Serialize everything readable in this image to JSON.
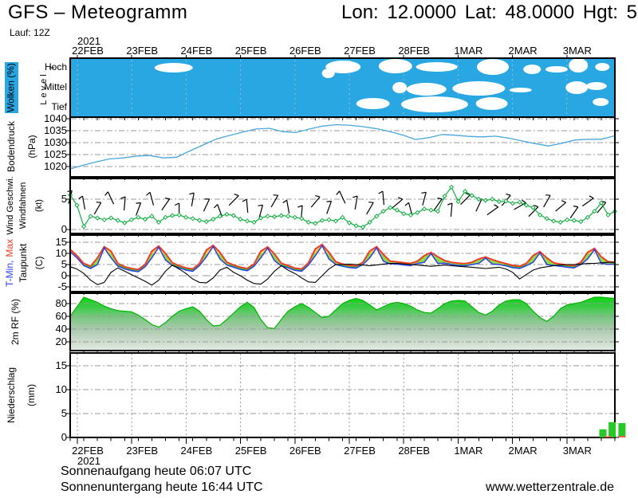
{
  "header": {
    "title": "GFS – Meteogramm",
    "coords": "Lon: 12.0000 Lat: 48.0000 Hgt: 5",
    "run": "Lauf: 12Z"
  },
  "x_axis": {
    "year": "2021",
    "days": [
      "22FEB",
      "23FEB",
      "24FEB",
      "25FEB",
      "26FEB",
      "27FEB",
      "28FEB",
      "1MAR",
      "2MAR",
      "3MAR"
    ]
  },
  "footer": {
    "sunrise": "Sonnenaufgang heute 06:07 UTC",
    "sunset": "Sonnenuntergang heute 16:44 UTC",
    "website": "www.wetterzentrale.de"
  },
  "colors": {
    "cloud_blue": "#29A7E3",
    "pressure_line": "#4AA7DB",
    "wind_green": "#10AF3F",
    "tmax_red": "#F03C28",
    "tmin_blue": "#2B3FE8",
    "dew_black": "#000000",
    "band_low": "#2FCC2F",
    "band_mid": "#90DC48",
    "band_high": "#EFD24A",
    "rf_line": "#00B400",
    "precip_green": "#28C828",
    "precip_red": "#F85548",
    "grid": "#999999"
  },
  "chart_data": [
    {
      "type": "area",
      "name": "clouds",
      "label": "Wolken (%)",
      "axis_label": "Level",
      "rows": [
        "Hoch",
        "Mittel",
        "Tief"
      ],
      "description": "blue = cloud cover, white patches = clear sky",
      "clear_patches": [
        [
          0.19,
          0.162,
          24,
          6
        ],
        [
          0.474,
          0.257,
          8,
          6
        ],
        [
          0.501,
          0.149,
          22,
          8
        ],
        [
          0.597,
          0.135,
          21,
          9
        ],
        [
          0.673,
          0.149,
          26,
          6
        ],
        [
          0.776,
          0.149,
          20,
          10
        ],
        [
          0.848,
          0.189,
          11,
          6
        ],
        [
          0.893,
          0.189,
          14,
          4
        ],
        [
          0.933,
          0.122,
          12,
          9
        ],
        [
          0.977,
          0.149,
          9,
          5
        ],
        [
          0.605,
          0.5,
          9,
          7
        ],
        [
          0.654,
          0.527,
          25,
          8
        ],
        [
          0.75,
          0.514,
          33,
          9
        ],
        [
          0.827,
          0.541,
          14,
          3
        ],
        [
          0.93,
          0.5,
          14,
          8
        ],
        [
          0.966,
          0.473,
          13,
          5
        ],
        [
          0.556,
          0.77,
          21,
          7
        ],
        [
          0.669,
          0.784,
          42,
          10
        ],
        [
          0.774,
          0.77,
          20,
          8
        ],
        [
          0.974,
          0.743,
          10,
          5
        ]
      ]
    },
    {
      "type": "line",
      "name": "pressure",
      "label": "Bodendruck",
      "unit": "(hPa)",
      "yticks": [
        1040,
        1035,
        1030,
        1025,
        1020
      ],
      "ylim": [
        1016,
        1040
      ],
      "values_hpa_6h": [
        1019.0,
        1020.6,
        1022.0,
        1023.2,
        1023.6,
        1024.4,
        1024.6,
        1023.6,
        1023.9,
        1026.5,
        1029.0,
        1031.5,
        1033.0,
        1034.4,
        1035.7,
        1036.0,
        1034.6,
        1034.2,
        1035.7,
        1036.9,
        1037.5,
        1037.3,
        1036.7,
        1035.9,
        1034.7,
        1033.2,
        1031.3,
        1032.1,
        1033.4,
        1033.1,
        1032.6,
        1032.4,
        1032.7,
        1031.9,
        1030.7,
        1029.6,
        1028.6,
        1029.7,
        1031.1,
        1031.4,
        1031.4,
        1032.9
      ]
    },
    {
      "type": "line",
      "name": "wind",
      "label": "Wind Geschwi.",
      "label2": "Windfahnen",
      "unit": "(kt)",
      "yticks": [
        5,
        0
      ],
      "values_kt_3h": [
        5.7,
        4.0,
        0.5,
        2.2,
        1.9,
        1.6,
        1.9,
        1.5,
        1.1,
        1.6,
        2.0,
        1.7,
        2.2,
        1.2,
        2.0,
        2.3,
        2.4,
        2.0,
        1.8,
        1.5,
        1.3,
        1.7,
        2.2,
        2.5,
        2.3,
        1.7,
        1.4,
        1.2,
        1.9,
        2.2,
        2.1,
        2.3,
        2.2,
        2.0,
        1.8,
        1.2,
        1.0,
        1.5,
        1.6,
        1.4,
        2.0,
        1.1,
        0.6,
        0.4,
        1.2,
        2.2,
        3.0,
        3.6,
        3.2,
        2.6,
        2.4,
        2.8,
        3.4,
        3.2,
        3.0,
        5.5,
        7.0,
        4.6,
        6.3,
        5.6,
        5.0,
        4.8,
        5.0,
        4.6,
        4.7,
        4.3,
        4.5,
        4.0,
        3.6,
        2.4,
        1.8,
        1.4,
        1.2,
        1.6,
        1.5,
        1.3,
        2.0,
        3.0,
        4.4,
        2.4,
        3.0
      ],
      "barbs": [
        [
          0.0,
          75
        ],
        [
          0.025,
          100
        ],
        [
          0.05,
          60
        ],
        [
          0.075,
          115
        ],
        [
          0.1,
          85
        ],
        [
          0.125,
          70
        ],
        [
          0.15,
          105
        ],
        [
          0.175,
          55
        ],
        [
          0.2,
          90
        ],
        [
          0.225,
          80
        ],
        [
          0.25,
          65
        ],
        [
          0.275,
          110
        ],
        [
          0.3,
          45
        ],
        [
          0.325,
          95
        ],
        [
          0.35,
          75
        ],
        [
          0.375,
          60
        ],
        [
          0.4,
          100
        ],
        [
          0.425,
          85
        ],
        [
          0.45,
          50
        ],
        [
          0.475,
          70
        ],
        [
          0.5,
          115
        ],
        [
          0.525,
          80
        ],
        [
          0.55,
          60
        ],
        [
          0.575,
          95
        ],
        [
          0.6,
          40
        ],
        [
          0.625,
          105
        ],
        [
          0.65,
          75
        ],
        [
          0.675,
          55
        ],
        [
          0.7,
          85
        ],
        [
          0.725,
          45
        ],
        [
          0.75,
          65
        ],
        [
          0.775,
          35
        ],
        [
          0.8,
          50
        ],
        [
          0.825,
          30
        ],
        [
          0.85,
          45
        ],
        [
          0.875,
          60
        ],
        [
          0.9,
          40
        ],
        [
          0.925,
          55
        ],
        [
          0.95,
          35
        ],
        [
          0.975,
          50
        ]
      ]
    },
    {
      "type": "line",
      "name": "temperature",
      "label_min": "T-Min,",
      "label_max": "Max",
      "label_dew": "Taupunkt",
      "unit": "(C)",
      "yticks": [
        15,
        10,
        5,
        0,
        -5
      ],
      "tmax_c_3h": [
        11.8,
        9.0,
        5.5,
        4.2,
        8.0,
        13.0,
        11.0,
        5.5,
        4.0,
        3.2,
        2.8,
        5.0,
        11.0,
        13.3,
        10.0,
        5.8,
        4.5,
        3.5,
        3.0,
        5.5,
        11.5,
        13.6,
        10.5,
        6.0,
        4.8,
        3.8,
        3.2,
        5.2,
        11.0,
        12.9,
        9.8,
        5.6,
        4.5,
        3.4,
        3.0,
        5.8,
        12.0,
        14.0,
        10.5,
        6.2,
        5.2,
        4.6,
        4.4,
        6.0,
        11.0,
        13.0,
        9.5,
        6.5,
        6.2,
        5.8,
        5.5,
        6.5,
        9.0,
        10.4,
        8.5,
        6.8,
        6.0,
        5.6,
        5.4,
        6.0,
        7.5,
        8.4,
        7.2,
        6.2,
        5.4,
        4.6,
        4.2,
        5.5,
        9.0,
        10.8,
        8.0,
        5.8,
        5.2,
        4.8,
        4.5,
        6.0,
        10.5,
        12.2,
        8.5,
        6.3,
        6.0
      ],
      "tmin_c_3h": [
        10.8,
        8.0,
        4.5,
        3.2,
        5.0,
        12.5,
        8.0,
        4.3,
        3.0,
        2.2,
        1.8,
        4.0,
        8.0,
        12.8,
        7.0,
        4.6,
        3.5,
        2.5,
        2.0,
        4.5,
        8.5,
        13.1,
        7.5,
        4.8,
        3.8,
        2.8,
        2.2,
        4.2,
        8.0,
        12.4,
        6.8,
        4.4,
        3.5,
        2.4,
        2.0,
        4.8,
        9.0,
        13.5,
        7.5,
        5.0,
        4.2,
        3.6,
        3.4,
        5.0,
        8.0,
        12.5,
        6.5,
        5.3,
        5.2,
        4.8,
        4.5,
        5.5,
        6.0,
        9.9,
        5.5,
        5.6,
        5.0,
        4.6,
        4.4,
        5.0,
        5.5,
        7.9,
        5.2,
        5.0,
        4.4,
        3.6,
        3.2,
        4.5,
        6.0,
        10.3,
        5.0,
        4.6,
        4.2,
        3.8,
        3.5,
        5.0,
        7.5,
        11.7,
        5.5,
        5.1,
        5.2
      ],
      "dewpoint_c_3h": [
        4.0,
        3.0,
        1.0,
        -2.0,
        -4.0,
        -3.0,
        1.5,
        3.5,
        2.0,
        0.5,
        -1.0,
        -2.5,
        -4.2,
        -2.0,
        2.0,
        4.8,
        3.0,
        1.0,
        -1.5,
        -3.0,
        -3.2,
        -1.0,
        2.5,
        3.8,
        1.5,
        0.0,
        -2.0,
        -3.5,
        -3.8,
        -1.5,
        2.0,
        4.5,
        2.5,
        1.0,
        -1.0,
        -2.8,
        -3.0,
        0.0,
        3.0,
        5.0,
        5.0,
        5.2,
        5.0,
        4.8,
        4.5,
        4.8,
        5.2,
        5.5,
        5.5,
        5.3,
        5.0,
        4.8,
        4.5,
        4.2,
        4.5,
        4.8,
        4.5,
        4.2,
        4.0,
        3.8,
        3.5,
        3.2,
        3.5,
        3.8,
        3.0,
        1.5,
        -1.5,
        0.5,
        2.5,
        3.5,
        4.0,
        4.5,
        4.8,
        5.0,
        5.0,
        5.2,
        5.5,
        5.5,
        5.8,
        6.0,
        6.0
      ]
    },
    {
      "type": "area",
      "name": "humidity",
      "label": "2m RF (%)",
      "yticks": [
        80,
        60,
        40,
        20
      ],
      "values_pct_3h": [
        60,
        75,
        90,
        86,
        82,
        76,
        72,
        69,
        68,
        67,
        62,
        55,
        47,
        43,
        50,
        60,
        68,
        72,
        75,
        68,
        55,
        45,
        46,
        55,
        65,
        75,
        82,
        74,
        55,
        42,
        41,
        55,
        68,
        75,
        80,
        74,
        66,
        58,
        60,
        70,
        80,
        85,
        88,
        85,
        78,
        70,
        75,
        80,
        82,
        80,
        76,
        70,
        66,
        65,
        72,
        80,
        84,
        85,
        84,
        75,
        66,
        62,
        68,
        78,
        84,
        86,
        86,
        80,
        68,
        58,
        52,
        60,
        72,
        78,
        80,
        82,
        86,
        90,
        90,
        89,
        88
      ]
    },
    {
      "type": "bar",
      "name": "precipitation",
      "label": "Niederschlag",
      "unit": "(mm)",
      "yticks": [
        15,
        10,
        5,
        0
      ],
      "bars_mm": [
        {
          "f": 0.978,
          "v": 1.7
        },
        {
          "f": 0.995,
          "v": 3.2
        },
        {
          "f": 1.013,
          "v": 3.0
        }
      ],
      "red_bars_mm": [
        {
          "f": 0.987,
          "v": 0.25
        },
        {
          "f": 1.013,
          "v": 0.3
        }
      ]
    }
  ]
}
